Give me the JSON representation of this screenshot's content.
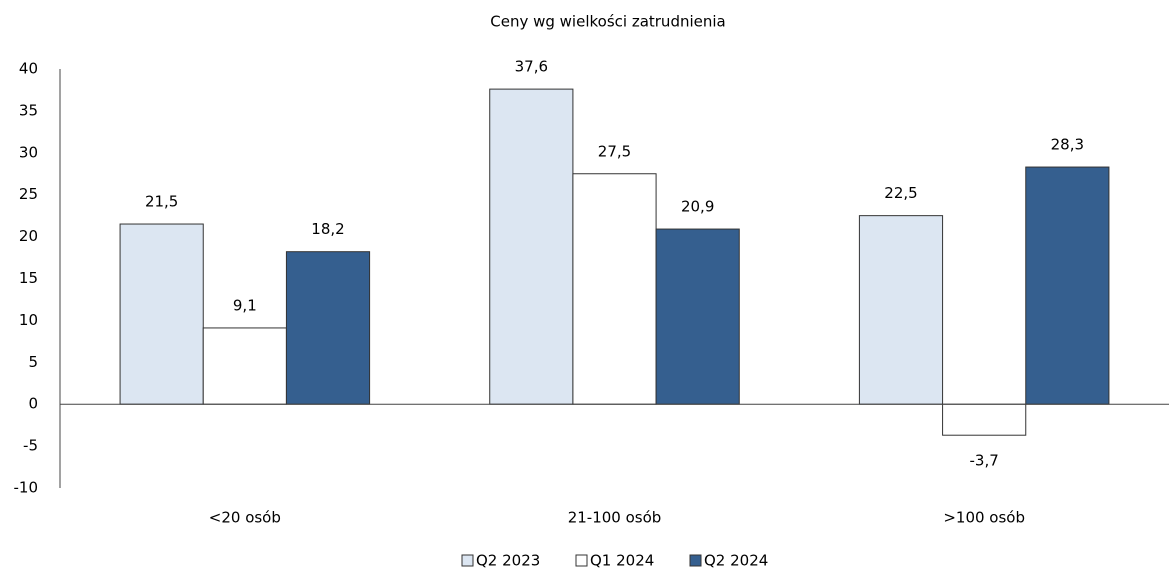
{
  "chart_data": {
    "type": "bar",
    "title": "Ceny wg wielkości zatrudnienia",
    "categories": [
      "<20 osób",
      "21-100 osób",
      ">100 osób"
    ],
    "series": [
      {
        "name": "Q2 2023",
        "color": "#dce6f2",
        "values": [
          21.5,
          37.6,
          22.5
        ],
        "value_labels": [
          "21,5",
          "37,6",
          "22,5"
        ]
      },
      {
        "name": "Q1 2024",
        "color": "#ffffff",
        "values": [
          9.1,
          27.5,
          -3.7
        ],
        "value_labels": [
          "9,1",
          "27,5",
          "-3,7"
        ]
      },
      {
        "name": "Q2 2024",
        "color": "#355f8f",
        "values": [
          18.2,
          20.9,
          28.3
        ],
        "value_labels": [
          "18,2",
          "20,9",
          "28,3"
        ]
      }
    ],
    "ylim": [
      -10,
      40
    ],
    "yticks": [
      -10,
      -5,
      0,
      5,
      10,
      15,
      20,
      25,
      30,
      35,
      40
    ],
    "grid": false,
    "legend": "bottom"
  }
}
